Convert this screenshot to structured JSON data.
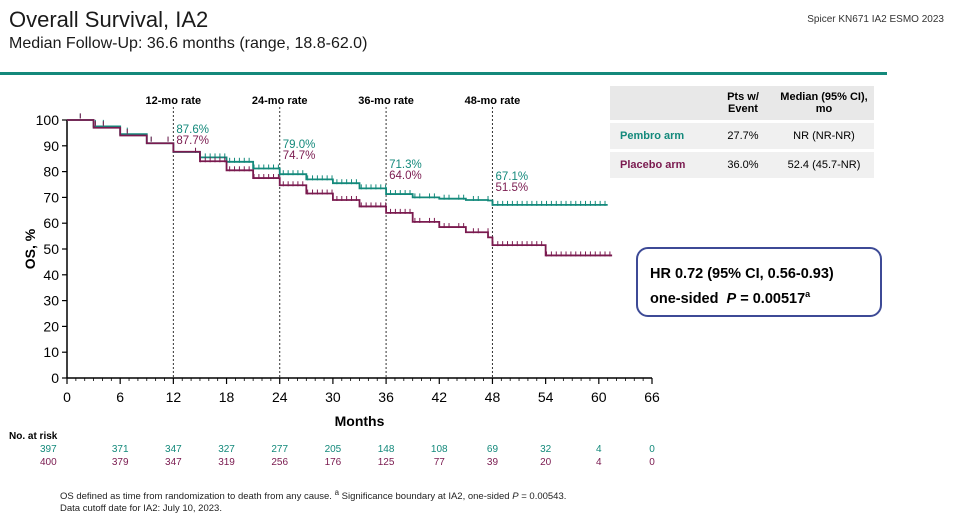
{
  "header": {
    "title": "Overall Survival, IA2",
    "subtitle": "Median Follow-Up: 36.6 months (range, 18.8-62.0)",
    "source": "Spicer KN671 IA2 ESMO 2023"
  },
  "colors": {
    "pembro": "#13897b",
    "placebo": "#7a1a4f",
    "accent_rule": "#14897b",
    "box_border": "#3d4a96"
  },
  "chart_data": {
    "type": "line",
    "title": "Overall Survival, IA2",
    "xlabel": "Months",
    "ylabel": "OS, %",
    "xlim": [
      0,
      66
    ],
    "ylim": [
      0,
      100
    ],
    "x_ticks": [
      0,
      6,
      12,
      18,
      24,
      30,
      36,
      42,
      48,
      54,
      60,
      66
    ],
    "y_ticks": [
      0,
      10,
      20,
      30,
      40,
      50,
      60,
      70,
      80,
      90,
      100
    ],
    "reference_lines": [
      {
        "x": 12,
        "label": "12-mo rate"
      },
      {
        "x": 24,
        "label": "24-mo rate"
      },
      {
        "x": 36,
        "label": "36-mo rate"
      },
      {
        "x": 48,
        "label": "48-mo rate"
      }
    ],
    "series": [
      {
        "name": "Pembro arm",
        "color": "#13897b",
        "x": [
          0,
          3,
          6,
          9,
          12,
          15,
          18,
          21,
          24,
          27,
          30,
          33,
          36,
          39,
          42,
          45,
          47.5,
          48,
          54,
          61
        ],
        "y": [
          100,
          97.5,
          94.5,
          91,
          87.6,
          85.5,
          83.8,
          81.2,
          79.0,
          77.0,
          75.5,
          73.5,
          71.3,
          70.0,
          69.5,
          69.0,
          68.8,
          67.1,
          67.1,
          67.1
        ],
        "rate_labels": [
          "87.6%",
          "79.0%",
          "71.3%",
          "67.1%"
        ],
        "at_risk": [
          397,
          371,
          347,
          327,
          277,
          205,
          148,
          108,
          69,
          32,
          4,
          0
        ]
      },
      {
        "name": "Placebo arm",
        "color": "#7a1a4f",
        "x": [
          0,
          3,
          6,
          9,
          12,
          15,
          18,
          21,
          24,
          27,
          30,
          33,
          36,
          39,
          42,
          45,
          47.5,
          48,
          54,
          61.5
        ],
        "y": [
          100,
          97,
          94,
          91,
          87.7,
          84,
          80.5,
          77.5,
          74.7,
          71.5,
          69,
          66.5,
          64.0,
          60.5,
          58.5,
          56.5,
          54.5,
          51.5,
          47.5,
          47.5
        ],
        "rate_labels": [
          "87.7%",
          "74.7%",
          "64.0%",
          "51.5%"
        ],
        "at_risk": [
          400,
          379,
          347,
          319,
          256,
          176,
          125,
          77,
          39,
          20,
          4,
          0
        ]
      }
    ],
    "at_risk_label": "No. at risk",
    "summary_table": {
      "headers": [
        "Pts w/ Event",
        "Median (95% CI), mo"
      ],
      "rows": [
        {
          "arm": "Pembro arm",
          "events": "27.7%",
          "median": "NR (NR-NR)"
        },
        {
          "arm": "Placebo arm",
          "events": "36.0%",
          "median": "52.4 (45.7-NR)"
        }
      ]
    },
    "hazard_ratio": {
      "line1": "HR 0.72 (95% CI, 0.56-0.93)",
      "line2_prefix": "one-sided",
      "p_label": "P",
      "p_value": "= 0.00517",
      "sup": "a"
    }
  },
  "footnote": {
    "line1_a": "OS defined as time from randomization to death from any cause. ",
    "line1_sup": "a",
    "line1_b": " Significance boundary at IA2, one-sided ",
    "line1_p": "P",
    "line1_c": " = 0.00543.",
    "line2": "Data cutoff date for IA2: July 10, 2023."
  }
}
